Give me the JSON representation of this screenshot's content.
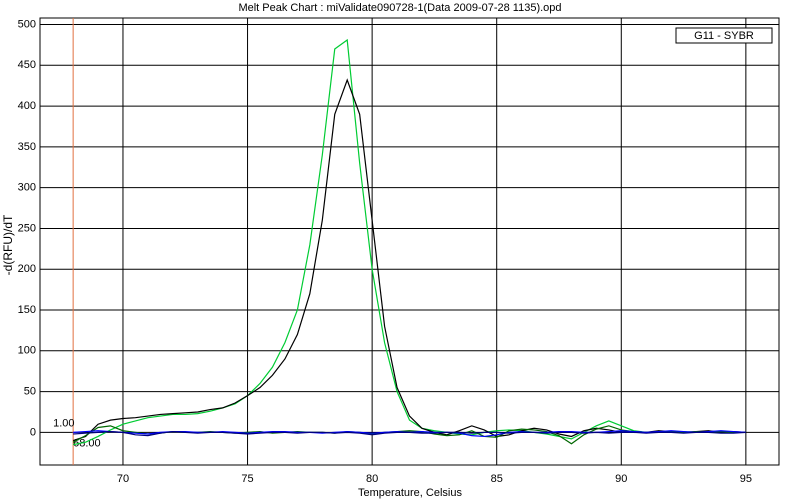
{
  "chart_data": {
    "type": "line",
    "title": "Melt Peak Chart : miValidate090728-1(Data 2009-07-28 1135).opd",
    "x_label": "Temperature, Celsius",
    "y_label": "-d(RFU)/dT",
    "legend": "G11 - SYBR",
    "marker": {
      "x": {
        "value": 68,
        "label": "68.00"
      },
      "y": {
        "value": 1,
        "label": "1.00"
      },
      "color": "#e07040"
    },
    "x": [
      68,
      68.5,
      69,
      69.5,
      70,
      70.5,
      71,
      71.5,
      72,
      72.5,
      73,
      73.5,
      74,
      74.5,
      75,
      75.5,
      76,
      76.5,
      77,
      77.5,
      78,
      78.5,
      79,
      79.5,
      80,
      80.5,
      81,
      81.5,
      82,
      82.5,
      83,
      83.5,
      84,
      84.5,
      85,
      85.5,
      86,
      86.5,
      87,
      87.5,
      88,
      88.5,
      89,
      89.5,
      90,
      90.5,
      91,
      91.5,
      92,
      92.5,
      93,
      93.5,
      94,
      94.5,
      95
    ],
    "series": [
      {
        "color": "#00cc33",
        "values": [
          -15,
          -12,
          -5,
          3,
          10,
          14,
          18,
          20,
          22,
          22,
          23,
          26,
          30,
          35,
          45,
          60,
          80,
          110,
          150,
          230,
          340,
          470,
          481,
          330,
          200,
          110,
          50,
          15,
          5,
          2,
          0,
          -2,
          -3,
          0,
          2,
          3,
          2,
          0,
          -2,
          -5,
          -8,
          0,
          8,
          14,
          8,
          2,
          0,
          1,
          0,
          1,
          0,
          0,
          1,
          0,
          0
        ]
      },
      {
        "color": "#000000",
        "values": [
          -10,
          -5,
          10,
          15,
          17,
          18,
          20,
          22,
          23,
          24,
          25,
          28,
          30,
          36,
          45,
          55,
          70,
          90,
          120,
          170,
          260,
          390,
          432,
          390,
          260,
          130,
          55,
          20,
          5,
          0,
          -3,
          2,
          8,
          3,
          -5,
          -3,
          2,
          5,
          3,
          -2,
          -5,
          2,
          5,
          3,
          0,
          1,
          0,
          2,
          1,
          0,
          1,
          2,
          0,
          1,
          0
        ]
      },
      {
        "color": "#006600",
        "values": [
          -12,
          -4,
          6,
          8,
          2,
          0,
          -2,
          -1,
          1,
          0,
          0,
          1,
          0,
          -1,
          0,
          1,
          -1,
          0,
          1,
          0,
          0,
          -1,
          1,
          0,
          -2,
          0,
          1,
          2,
          1,
          -2,
          -4,
          -3,
          2,
          -5,
          -6,
          2,
          4,
          3,
          1,
          -4,
          -14,
          -3,
          4,
          8,
          3,
          1,
          0,
          0,
          1,
          0,
          1,
          0,
          1,
          0,
          0
        ]
      },
      {
        "color": "#0000ff",
        "values": [
          0,
          1,
          2,
          1,
          0,
          -1,
          -2,
          0,
          1,
          1,
          0,
          0,
          1,
          0,
          -1,
          0,
          1,
          1,
          0,
          0,
          -1,
          0,
          1,
          0,
          -1,
          0,
          1,
          0,
          1,
          0,
          0,
          -1,
          -4,
          -5,
          -3,
          0,
          1,
          0,
          0,
          1,
          1,
          0,
          0,
          1,
          2,
          1,
          0,
          1,
          2,
          1,
          0,
          1,
          2,
          1,
          0
        ]
      },
      {
        "color": "#000080",
        "values": [
          -2,
          -1,
          0,
          1,
          0,
          -3,
          -4,
          -1,
          1,
          0,
          -1,
          0,
          0,
          -1,
          -2,
          -1,
          0,
          0,
          -1,
          0,
          0,
          -1,
          0,
          -1,
          -3,
          -1,
          0,
          0,
          -1,
          -1,
          0,
          0,
          -1,
          0,
          0,
          -1,
          0,
          0,
          -1,
          0,
          0,
          -1,
          0,
          -1,
          0,
          0,
          -1,
          0,
          0,
          -1,
          0,
          0,
          -1,
          -1,
          0
        ]
      }
    ],
    "xlim": [
      66.67,
      96.33
    ],
    "ylim": [
      -40,
      508
    ],
    "xticks": [
      70,
      75,
      80,
      85,
      90,
      95
    ],
    "yticks": [
      0,
      50,
      100,
      150,
      200,
      250,
      300,
      350,
      400,
      450,
      500
    ],
    "grid": true
  }
}
